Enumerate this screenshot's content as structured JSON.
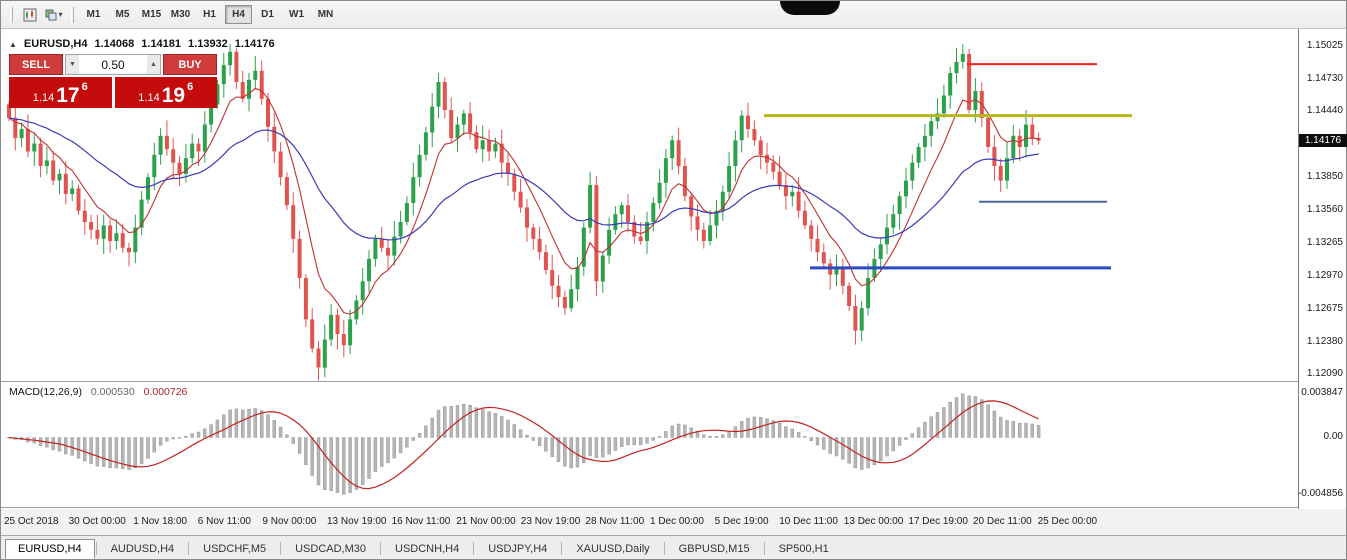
{
  "toolbar": {
    "timeframes": [
      "M1",
      "M5",
      "M15",
      "M30",
      "H1",
      "H4",
      "D1",
      "W1",
      "MN"
    ],
    "active_timeframe": "H4"
  },
  "chart": {
    "symbol_line": {
      "toggle_glyph": "▲",
      "symbol": "EURUSD,H4",
      "open": "1.14068",
      "high": "1.14181",
      "low": "1.13932",
      "close": "1.14176"
    },
    "one_click": {
      "sell_label": "SELL",
      "buy_label": "BUY",
      "volume": "0.50",
      "dec_glyph": "▼",
      "inc_glyph": "▲",
      "sell_price": {
        "prefix": "1.14",
        "big": "17",
        "sup": "6"
      },
      "buy_price": {
        "prefix": "1.14",
        "big": "19",
        "sup": "6"
      }
    }
  },
  "chart_data": {
    "type": "candlestick",
    "symbol": "EURUSD",
    "timeframe": "H4",
    "title": "EURUSD,H4",
    "current_price": "1.14176",
    "current_price_value": 1.14176,
    "price_axis": {
      "max": 1.1512,
      "min": 1.1203,
      "ticks": [
        "1.15025",
        "1.14730",
        "1.14440",
        "1.14145",
        "1.13850",
        "1.13560",
        "1.13265",
        "1.12970",
        "1.12675",
        "1.12380",
        "1.12090"
      ]
    },
    "last_candle_frac": 0.8,
    "first_open": 1.145,
    "candle_up_color": "#2ca04a",
    "candle_down_color": "#e05450",
    "closes": [
      1.1438,
      1.142,
      1.1428,
      1.1408,
      1.1415,
      1.1395,
      1.14,
      1.1382,
      1.1388,
      1.137,
      1.1375,
      1.1355,
      1.1345,
      1.1338,
      1.133,
      1.1342,
      1.1328,
      1.1335,
      1.1322,
      1.1318,
      1.134,
      1.1365,
      1.1385,
      1.1405,
      1.1422,
      1.141,
      1.1398,
      1.1388,
      1.1402,
      1.1415,
      1.1408,
      1.1432,
      1.145,
      1.1468,
      1.1485,
      1.1497,
      1.147,
      1.1455,
      1.1472,
      1.148,
      1.1455,
      1.143,
      1.1408,
      1.1385,
      1.136,
      1.133,
      1.1295,
      1.1258,
      1.1232,
      1.1215,
      1.124,
      1.1262,
      1.1245,
      1.1235,
      1.1258,
      1.1275,
      1.1292,
      1.1312,
      1.133,
      1.1322,
      1.1315,
      1.1332,
      1.1345,
      1.1362,
      1.1385,
      1.1405,
      1.1425,
      1.1448,
      1.147,
      1.1445,
      1.142,
      1.1432,
      1.1442,
      1.1425,
      1.141,
      1.1418,
      1.1408,
      1.1415,
      1.1398,
      1.1388,
      1.1372,
      1.1358,
      1.134,
      1.133,
      1.1318,
      1.1302,
      1.1288,
      1.1278,
      1.1268,
      1.1285,
      1.1305,
      1.134,
      1.1378,
      1.1292,
      1.1315,
      1.1338,
      1.1352,
      1.136,
      1.1345,
      1.1332,
      1.1328,
      1.1345,
      1.1362,
      1.138,
      1.1402,
      1.1418,
      1.1395,
      1.1368,
      1.135,
      1.1338,
      1.1328,
      1.1342,
      1.1355,
      1.1372,
      1.1395,
      1.1418,
      1.144,
      1.1428,
      1.1418,
      1.1405,
      1.1398,
      1.139,
      1.1378,
      1.1368,
      1.1372,
      1.1355,
      1.1342,
      1.133,
      1.1318,
      1.1308,
      1.1298,
      1.1305,
      1.1288,
      1.127,
      1.1248,
      1.1268,
      1.1295,
      1.1312,
      1.1325,
      1.134,
      1.1352,
      1.1368,
      1.1382,
      1.1398,
      1.1412,
      1.1422,
      1.1435,
      1.1442,
      1.1458,
      1.1478,
      1.1488,
      1.1495,
      1.1445,
      1.1462,
      1.1438,
      1.1412,
      1.1395,
      1.1382,
      1.1402,
      1.1422,
      1.1412,
      1.1432,
      1.142,
      1.14176
    ],
    "overlays": {
      "ma_fast_period": 8,
      "ma_fast_color": "#c03030",
      "ma_slow_period": 30,
      "ma_slow_color": "#3a3ab8"
    },
    "hlines": [
      {
        "price": 1.1486,
        "x1": 0.745,
        "x2": 0.845,
        "color": "#ff1f1f",
        "width": 2
      },
      {
        "price": 1.144,
        "x1": 0.588,
        "x2": 0.872,
        "color": "#b7b712",
        "width": 3
      },
      {
        "price": 1.1363,
        "x1": 0.754,
        "x2": 0.853,
        "color": "#4a6a9d",
        "width": 2
      },
      {
        "price": 1.1304,
        "x1": 0.624,
        "x2": 0.856,
        "color": "#2c49c4",
        "width": 3
      }
    ],
    "macd": {
      "label": "MACD(12,26,9)",
      "value_main": "0.000530",
      "value_signal": "0.000726",
      "fast": 12,
      "slow": 26,
      "signal": 9,
      "hist_color": "#b6b6b6",
      "hist_edge_color": "#8e8e8e",
      "signal_color": "#c32222",
      "range_max": 0.0047,
      "range_min": -0.006,
      "ticks": [
        {
          "value": 0.003847,
          "label": "0.003847"
        },
        {
          "value": 0,
          "label": "0.00"
        },
        {
          "value": -0.004856,
          "label": "-0.004856"
        }
      ]
    },
    "x_labels": [
      "25 Oct 2018",
      "30 Oct 00:00",
      "1 Nov 18:00",
      "6 Nov 11:00",
      "9 Nov 00:00",
      "13 Nov 19:00",
      "16 Nov 11:00",
      "21 Nov 00:00",
      "23 Nov 19:00",
      "28 Nov 11:00",
      "1 Dec 00:00",
      "5 Dec 19:00",
      "10 Dec 11:00",
      "13 Dec 00:00",
      "17 Dec 19:00",
      "20 Dec 11:00",
      "25 Dec 00:00"
    ]
  },
  "tabs": {
    "items": [
      "EURUSD,H4",
      "AUDUSD,H4",
      "USDCHF,M5",
      "USDCAD,M30",
      "USDCNH,H4",
      "USDJPY,H4",
      "XAUUSD,Daily",
      "GBPUSD,M15",
      "SP500,H1"
    ],
    "active": "EURUSD,H4"
  }
}
